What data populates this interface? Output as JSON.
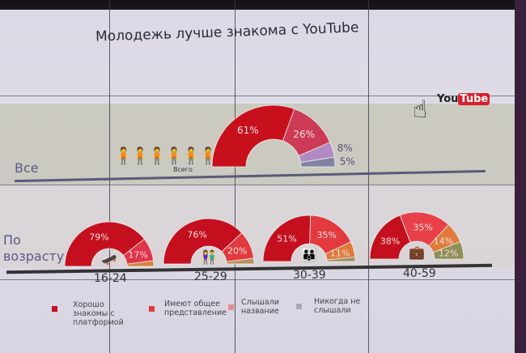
{
  "title": "Молодежь лучше знакома с YouTube",
  "logo": {
    "text": "YouTube",
    "icon": "hand-pointer-icon"
  },
  "rows": {
    "all_label": "Все",
    "age_label": "По возрасту",
    "total_caption": "Всего"
  },
  "colors": {
    "well_known": "#c4101e",
    "general_idea": "#e23a3f",
    "heard_name": "#e58a95",
    "never_heard": "#a8a8b8"
  },
  "legend": [
    {
      "label": "Хорошо знакомы с платформой",
      "color": "#c4101e"
    },
    {
      "label": "Имеют общее представление",
      "color": "#e23a3f"
    },
    {
      "label": "Слышали название",
      "color": "#e58a95"
    },
    {
      "label": "Никогда не слышали",
      "color": "#a8a8b8"
    }
  ],
  "chart_data": [
    {
      "type": "pie",
      "shape": "half-donut",
      "category": "Все",
      "values": [
        61,
        26,
        8,
        5
      ],
      "labels": [
        "61%",
        "26%",
        "8%",
        "5%"
      ],
      "colors": [
        "#c8101c",
        "#cc3a55",
        "#b08ac0",
        "#8282a2"
      ],
      "icon": "people-group-icon"
    },
    {
      "type": "pie",
      "shape": "half-donut",
      "category": "16-24",
      "values": [
        79,
        17,
        4
      ],
      "labels": [
        "79%",
        "17%",
        ""
      ],
      "colors": [
        "#c4101e",
        "#e0344a",
        "#d9803a"
      ],
      "icon": "skateboarder-icon"
    },
    {
      "type": "pie",
      "shape": "half-donut",
      "category": "25-29",
      "values": [
        76,
        20,
        4
      ],
      "labels": [
        "76%",
        "20%",
        ""
      ],
      "colors": [
        "#c4101e",
        "#e23a3f",
        "#b89060"
      ],
      "icon": "couple-icon"
    },
    {
      "type": "pie",
      "shape": "half-donut",
      "category": "30-39",
      "values": [
        51,
        35,
        11,
        3
      ],
      "labels": [
        "51%",
        "35%",
        "11%",
        ""
      ],
      "colors": [
        "#c4101e",
        "#e23a3f",
        "#e07a3a",
        "#9a9060"
      ],
      "icon": "family-icon"
    },
    {
      "type": "pie",
      "shape": "half-donut",
      "category": "40-59",
      "values": [
        38,
        35,
        14,
        12
      ],
      "labels": [
        "38%",
        "35%",
        "14%",
        "12%"
      ],
      "colors": [
        "#c4101e",
        "#e8404a",
        "#e07a3a",
        "#8e8e58"
      ],
      "icon": "businessman-icon"
    }
  ]
}
